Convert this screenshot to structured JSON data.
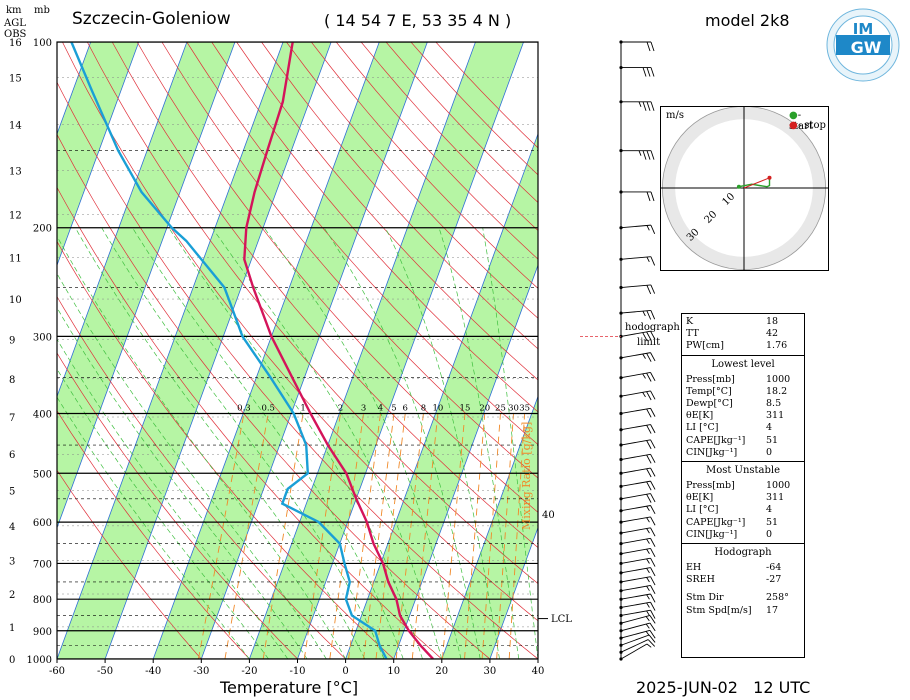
{
  "header": {
    "station": "Szczecin-Goleniow",
    "coords": "( 14 54 7 E, 53 35 4 N )",
    "model": "model 2k8",
    "datetime": "2025-JUN-02   12 UTC",
    "logo_text_top": "IM",
    "logo_text_bottom": "GW"
  },
  "axis_labels": {
    "km": "km",
    "agl": "AGL",
    "obs": "OBS",
    "mb": "mb",
    "xlabel": "Temperature [°C]",
    "mixing_ratio": "Mixing Ratio [g/kg]",
    "lcl": "LCL",
    "hodograph_limit_1": "hodograph",
    "hodograph_limit_2": "limit",
    "forty": "40"
  },
  "chart_data": {
    "type": "skew-t",
    "title": "Szczecin-Goleniow",
    "xlabel": "Temperature [°C]",
    "ylabel": "mb",
    "xlim": [
      -60,
      40
    ],
    "ylim": [
      1000,
      100
    ],
    "x_ticks": [
      -60,
      -50,
      -40,
      -30,
      -20,
      -10,
      0,
      10,
      20,
      30,
      40
    ],
    "p_ticks": [
      1000,
      900,
      800,
      700,
      600,
      500,
      400,
      300,
      200,
      100
    ],
    "km_ticks": [
      0,
      1,
      2,
      3,
      4,
      5,
      6,
      7,
      8,
      9,
      10,
      11,
      12,
      13,
      14,
      15,
      16
    ],
    "mixing_ratio_labels": [
      "0.3",
      "0.5",
      "1",
      "2",
      "3",
      "4",
      "5",
      "6",
      "8",
      "10",
      "15",
      "20",
      "25",
      "30",
      "35"
    ],
    "temperature": {
      "name": "Temperature",
      "color": "#d4145a",
      "points": [
        [
          1000,
          18.2
        ],
        [
          950,
          14.5
        ],
        [
          900,
          11.0
        ],
        [
          850,
          8.0
        ],
        [
          800,
          6.0
        ],
        [
          750,
          3.0
        ],
        [
          700,
          0.5
        ],
        [
          650,
          -3.0
        ],
        [
          600,
          -6.0
        ],
        [
          550,
          -10.0
        ],
        [
          500,
          -14.0
        ],
        [
          450,
          -20.0
        ],
        [
          400,
          -26.0
        ],
        [
          350,
          -32.5
        ],
        [
          300,
          -40.0
        ],
        [
          250,
          -47.5
        ],
        [
          225,
          -51.5
        ],
        [
          200,
          -53.5
        ],
        [
          175,
          -54.5
        ],
        [
          150,
          -55.0
        ],
        [
          125,
          -55.5
        ],
        [
          100,
          -58.0
        ]
      ]
    },
    "dewpoint": {
      "name": "Dewpoint",
      "color": "#1a9fd6",
      "points": [
        [
          1000,
          8.5
        ],
        [
          950,
          6.0
        ],
        [
          900,
          4.0
        ],
        [
          850,
          -2.0
        ],
        [
          800,
          -4.5
        ],
        [
          750,
          -5.0
        ],
        [
          700,
          -7.5
        ],
        [
          650,
          -10.0
        ],
        [
          600,
          -16.0
        ],
        [
          560,
          -25.0
        ],
        [
          530,
          -25.0
        ],
        [
          500,
          -22.0
        ],
        [
          450,
          -24.5
        ],
        [
          400,
          -29.5
        ],
        [
          350,
          -37.0
        ],
        [
          300,
          -46.0
        ],
        [
          250,
          -53.5
        ],
        [
          210,
          -65.0
        ],
        [
          200,
          -69.0
        ],
        [
          175,
          -78.0
        ],
        [
          150,
          -86.0
        ],
        [
          120,
          -96.0
        ],
        [
          100,
          -104.0
        ]
      ]
    },
    "wind_barbs": [
      {
        "p": 1000,
        "dir": 240,
        "spd": 5
      },
      {
        "p": 975,
        "dir": 245,
        "spd": 10
      },
      {
        "p": 950,
        "dir": 250,
        "spd": 10
      },
      {
        "p": 925,
        "dir": 255,
        "spd": 15
      },
      {
        "p": 900,
        "dir": 255,
        "spd": 15
      },
      {
        "p": 875,
        "dir": 255,
        "spd": 15
      },
      {
        "p": 850,
        "dir": 260,
        "spd": 15
      },
      {
        "p": 825,
        "dir": 260,
        "spd": 15
      },
      {
        "p": 800,
        "dir": 260,
        "spd": 15
      },
      {
        "p": 775,
        "dir": 260,
        "spd": 15
      },
      {
        "p": 750,
        "dir": 260,
        "spd": 15
      },
      {
        "p": 725,
        "dir": 260,
        "spd": 15
      },
      {
        "p": 700,
        "dir": 260,
        "spd": 15
      },
      {
        "p": 675,
        "dir": 260,
        "spd": 15
      },
      {
        "p": 650,
        "dir": 260,
        "spd": 15
      },
      {
        "p": 625,
        "dir": 260,
        "spd": 15
      },
      {
        "p": 600,
        "dir": 260,
        "spd": 15
      },
      {
        "p": 575,
        "dir": 260,
        "spd": 15
      },
      {
        "p": 550,
        "dir": 260,
        "spd": 20
      },
      {
        "p": 525,
        "dir": 260,
        "spd": 20
      },
      {
        "p": 500,
        "dir": 260,
        "spd": 20
      },
      {
        "p": 475,
        "dir": 260,
        "spd": 20
      },
      {
        "p": 450,
        "dir": 260,
        "spd": 20
      },
      {
        "p": 425,
        "dir": 260,
        "spd": 20
      },
      {
        "p": 400,
        "dir": 260,
        "spd": 20
      },
      {
        "p": 375,
        "dir": 260,
        "spd": 25
      },
      {
        "p": 350,
        "dir": 260,
        "spd": 25
      },
      {
        "p": 325,
        "dir": 260,
        "spd": 25
      },
      {
        "p": 300,
        "dir": 260,
        "spd": 30
      },
      {
        "p": 275,
        "dir": 265,
        "spd": 25
      },
      {
        "p": 250,
        "dir": 265,
        "spd": 20
      },
      {
        "p": 225,
        "dir": 265,
        "spd": 15
      },
      {
        "p": 200,
        "dir": 265,
        "spd": 15
      },
      {
        "p": 175,
        "dir": 270,
        "spd": 20
      },
      {
        "p": 150,
        "dir": 270,
        "spd": 35
      },
      {
        "p": 125,
        "dir": 270,
        "spd": 35
      },
      {
        "p": 110,
        "dir": 270,
        "spd": 30
      },
      {
        "p": 100,
        "dir": 270,
        "spd": 20
      }
    ],
    "hodograph": {
      "unit": "m/s",
      "ring_labels": [
        "10",
        "20",
        "30"
      ],
      "legend_start": "- start",
      "legend_stop": "- stop",
      "start_color": "#2aa02a",
      "stop_color": "#d42020",
      "points": [
        [
          -2,
          0.5
        ],
        [
          3,
          1.5
        ],
        [
          6,
          1.0
        ],
        [
          9,
          0.5
        ],
        [
          10,
          1.0
        ],
        [
          10,
          4.0
        ]
      ]
    }
  },
  "indices": {
    "general": [
      {
        "k": "K",
        "v": "18"
      },
      {
        "k": "TT",
        "v": "42"
      },
      {
        "k": "PW[cm]",
        "v": "1.76"
      }
    ],
    "lowest_title": "Lowest level",
    "lowest": [
      {
        "k": "Press[mb]",
        "v": "1000"
      },
      {
        "k": "Temp[°C]",
        "v": "18.2"
      },
      {
        "k": "Dewp[°C]",
        "v": "8.5"
      },
      {
        "k": "θE[K]",
        "v": "311"
      },
      {
        "k": "LI [°C]",
        "v": "4"
      },
      {
        "k": "CAPE[Jkg⁻¹]",
        "v": "51"
      },
      {
        "k": "CIN[Jkg⁻¹]",
        "v": "0"
      }
    ],
    "unstable_title": "Most Unstable",
    "unstable": [
      {
        "k": "Press[mb]",
        "v": "1000"
      },
      {
        "k": "θE[K]",
        "v": "311"
      },
      {
        "k": "LI [°C]",
        "v": "4"
      },
      {
        "k": "CAPE[Jkg⁻¹]",
        "v": "51"
      },
      {
        "k": "CIN[Jkg⁻¹]",
        "v": "0"
      }
    ],
    "hodo_title": "Hodograph",
    "hodo": [
      {
        "k": "EH",
        "v": "-64"
      },
      {
        "k": "SREH",
        "v": "-27"
      }
    ],
    "storm": [
      {
        "k": "Stm Dir",
        "v": "258°"
      },
      {
        "k": "Stm Spd[m/s]",
        "v": "17"
      }
    ]
  },
  "colors": {
    "band_green": "#b6f5a4",
    "isotherm": "#2f6fd6",
    "dry_adiabat": "#e0303a",
    "moist_adiabat": "#3fbf3f",
    "mixing_ratio": "#f08a2a",
    "isobar": "#000000"
  }
}
